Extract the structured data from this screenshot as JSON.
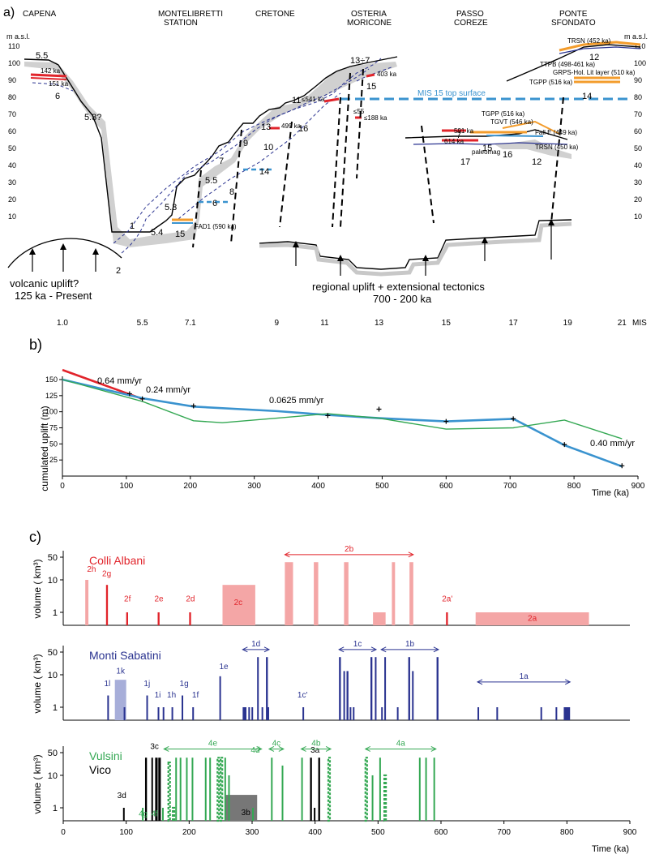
{
  "panel_a": {
    "tag": "a)",
    "localities": [
      "CAPENA",
      "MONTELIBRETTI",
      "STATION",
      "CRETONE",
      "OSTERIA",
      "MORICONE",
      "PASSO",
      "COREZE",
      "PONTE",
      "SFONDATO"
    ],
    "unit": "m a.s.l.",
    "y_ticks": [
      "110",
      "100",
      "90",
      "80",
      "70",
      "60",
      "50",
      "40",
      "30",
      "20",
      "10"
    ],
    "labels": {
      "t55a": "5.5",
      "t6a": "6",
      "t53q": "5.3?",
      "t1": "1",
      "t53": "5.3",
      "t54": "5.4",
      "t2": "2",
      "t55b": "5.5",
      "t6b": "6",
      "t7": "7",
      "t8": "8",
      "t9": "9",
      "t10": "10",
      "t11": "11",
      "t13": "13",
      "t14a": "14",
      "t15a": "15",
      "t16a": "16",
      "t13to7": "13÷7",
      "t15b": "15",
      "t14b": "14",
      "t12": "12",
      "t7b": "7",
      "t15c": "15",
      "t16b": "16",
      "t17": "17",
      "t12b": "12",
      "a142": "142 ka",
      "a151": "151 ka",
      "fad1": "FAD1 (590 ka)",
      "a499": "499 ka",
      "a541": "≤541 ka",
      "a403": "403 ka",
      "a55": "≤55",
      "a188": "≤188 ka",
      "trsn452": "TRSN (452 ka)",
      "ttpb": "TTPB (498-461 ka)",
      "grps": "GRPS-Hol. Lit layer (510 ka)",
      "tgpp516a": "TGPP (516 ka)",
      "mis15": "MIS 15 top surface",
      "tgpp516b": "TGPP (516 ka)",
      "tgvt": "TGVT (546 ka)",
      "a591": "591 ka",
      "falle": "Fall E (449 ka)",
      "a614": "614 ka",
      "trsn450": "TRSN (450 ka)",
      "paleomag": "paleomag"
    },
    "volcanic_caption": [
      "volcanic uplift?",
      "125 ka - Present"
    ],
    "regional_caption": [
      "regional uplift + extensional tectonics",
      "700 - 200 ka"
    ]
  },
  "panel_b": {
    "tag": "b)",
    "mis_label": "MIS",
    "mis_ticks": [
      "1.0",
      "5.5",
      "7.1",
      "9",
      "11",
      "13",
      "15",
      "17",
      "19",
      "21"
    ],
    "rates": [
      "0.64 mm/yr",
      "0.24 mm/yr",
      "0.0625 mm/yr",
      "0.40 mm/yr"
    ],
    "chart_data": {
      "type": "line",
      "xlabel": "Time (ka)",
      "ylabel": "cumulated uplift (m)",
      "xlim": [
        0,
        900
      ],
      "ylim": [
        0,
        150
      ],
      "x_ticks": [
        0,
        100,
        200,
        300,
        400,
        500,
        600,
        700,
        800,
        900
      ],
      "y_ticks": [
        25,
        50,
        75,
        100,
        125,
        150
      ],
      "series": [
        {
          "color": "#e1242b",
          "x": [
            0,
            125
          ],
          "y": [
            165,
            120
          ]
        },
        {
          "color": "#3a93cf",
          "x": [
            0,
            125,
            205,
            335,
            415,
            495,
            600,
            705,
            785,
            875
          ],
          "y": [
            150,
            121,
            108,
            101,
            95,
            90,
            85,
            89,
            48,
            15
          ]
        },
        {
          "color": "#34a853",
          "x": [
            0,
            125,
            205,
            250,
            335,
            415,
            495,
            600,
            705,
            785,
            875
          ],
          "y": [
            150,
            116,
            86,
            83,
            90,
            97,
            90,
            73,
            75,
            87,
            58
          ]
        }
      ],
      "markers": {
        "x": [
          105,
          125,
          205,
          415,
          495,
          600,
          705,
          785,
          875
        ],
        "y": [
          128,
          120,
          109,
          94,
          104,
          85,
          89,
          49,
          16
        ]
      }
    }
  },
  "panel_c": {
    "tag": "c)",
    "xlabel": "Time (ka)",
    "x_ticks": [
      0,
      100,
      200,
      300,
      400,
      500,
      600,
      700,
      800,
      900
    ],
    "ylabel": "volume ( km³)",
    "y_ticks": [
      "50",
      "10",
      "1"
    ],
    "rows": [
      {
        "title": "Colli Albani",
        "color": "#e1242b",
        "bars": [
          {
            "x0": 35,
            "x1": 40,
            "v": 10,
            "c": "#f4a6a6"
          },
          {
            "x0": 68,
            "x1": 71,
            "v": 7,
            "c": "#e1242b"
          },
          {
            "x0": 100,
            "x1": 103,
            "v": 1,
            "c": "#e1242b"
          },
          {
            "x0": 150,
            "x1": 153,
            "v": 1,
            "c": "#e1242b"
          },
          {
            "x0": 200,
            "x1": 203,
            "v": 1,
            "c": "#e1242b"
          },
          {
            "x0": 253,
            "x1": 305,
            "v": 7,
            "c": "#f4a6a6"
          },
          {
            "x0": 352,
            "x1": 365,
            "v": 35,
            "c": "#f4a6a6"
          },
          {
            "x0": 398,
            "x1": 405,
            "v": 35,
            "c": "#f4a6a6"
          },
          {
            "x0": 446,
            "x1": 453,
            "v": 35,
            "c": "#f4a6a6"
          },
          {
            "x0": 492,
            "x1": 512,
            "v": 1,
            "c": "#f4a6a6"
          },
          {
            "x0": 522,
            "x1": 527,
            "v": 35,
            "c": "#f4a6a6"
          },
          {
            "x0": 550,
            "x1": 556,
            "v": 35,
            "c": "#f4a6a6"
          },
          {
            "x0": 608,
            "x1": 611,
            "v": 1,
            "c": "#e1242b"
          },
          {
            "x0": 655,
            "x1": 835,
            "v": 1,
            "c": "#f4a6a6"
          }
        ],
        "labels": [
          {
            "t": "2h",
            "x": 45,
            "v": 18
          },
          {
            "t": "2g",
            "x": 69,
            "v": 13
          },
          {
            "t": "2f",
            "x": 102,
            "v": 2.2
          },
          {
            "t": "2e",
            "x": 152,
            "v": 2.2
          },
          {
            "t": "2d",
            "x": 202,
            "v": 2.2
          },
          {
            "t": "2c",
            "x": 278,
            "v": 1.7
          },
          {
            "t": "2a'",
            "x": 610,
            "v": 2.2
          },
          {
            "t": "2a",
            "x": 745,
            "v": 0.55
          }
        ],
        "spans": [
          {
            "t": "2b",
            "x0": 352,
            "x1": 556,
            "v": 60
          }
        ]
      },
      {
        "title": "Monti Sabatini",
        "color": "#2a3390",
        "bars": [
          {
            "x0": 70,
            "x1": 72,
            "v": 2.3,
            "c": "#2a3390"
          },
          {
            "x0": 82,
            "x1": 100,
            "v": 7,
            "c": "#a7aed9"
          },
          {
            "x0": 96,
            "x1": 98,
            "v": 1,
            "c": "#2a3390"
          },
          {
            "x0": 132,
            "x1": 134,
            "v": 2.3,
            "c": "#2a3390"
          },
          {
            "x0": 150,
            "x1": 152,
            "v": 1,
            "c": "#2a3390"
          },
          {
            "x0": 158,
            "x1": 160,
            "v": 1,
            "c": "#2a3390"
          },
          {
            "x0": 172,
            "x1": 174,
            "v": 1,
            "c": "#2a3390"
          },
          {
            "x0": 188,
            "x1": 190,
            "v": 2.3,
            "c": "#2a3390"
          },
          {
            "x0": 205,
            "x1": 207,
            "v": 1,
            "c": "#2a3390"
          },
          {
            "x0": 248,
            "x1": 250,
            "v": 9,
            "c": "#2a3390"
          },
          {
            "x0": 285,
            "x1": 291,
            "v": 1,
            "c": "#2a3390"
          },
          {
            "x0": 294,
            "x1": 296,
            "v": 1,
            "c": "#2a3390"
          },
          {
            "x0": 299,
            "x1": 301,
            "v": 1,
            "c": "#2a3390"
          },
          {
            "x0": 308,
            "x1": 310,
            "v": 35,
            "c": "#2a3390"
          },
          {
            "x0": 315,
            "x1": 317,
            "v": 1,
            "c": "#2a3390"
          },
          {
            "x0": 322,
            "x1": 325,
            "v": 35,
            "c": "#2a3390"
          },
          {
            "x0": 323,
            "x1": 327,
            "v": 1,
            "c": "#2a3390"
          },
          {
            "x0": 380,
            "x1": 382,
            "v": 1,
            "c": "#2a3390"
          },
          {
            "x0": 438,
            "x1": 441,
            "v": 35,
            "c": "#2a3390"
          },
          {
            "x0": 445,
            "x1": 447,
            "v": 13,
            "c": "#2a3390"
          },
          {
            "x0": 450,
            "x1": 453,
            "v": 13,
            "c": "#2a3390"
          },
          {
            "x0": 455,
            "x1": 457,
            "v": 1,
            "c": "#2a3390"
          },
          {
            "x0": 460,
            "x1": 462,
            "v": 1,
            "c": "#2a3390"
          },
          {
            "x0": 488,
            "x1": 491,
            "v": 35,
            "c": "#2a3390"
          },
          {
            "x0": 495,
            "x1": 497,
            "v": 35,
            "c": "#2a3390"
          },
          {
            "x0": 505,
            "x1": 507,
            "v": 1,
            "c": "#2a3390"
          },
          {
            "x0": 510,
            "x1": 512,
            "v": 35,
            "c": "#2a3390"
          },
          {
            "x0": 530,
            "x1": 532,
            "v": 1,
            "c": "#2a3390"
          },
          {
            "x0": 548,
            "x1": 551,
            "v": 35,
            "c": "#2a3390"
          },
          {
            "x0": 554,
            "x1": 556,
            "v": 13,
            "c": "#2a3390"
          },
          {
            "x0": 593,
            "x1": 596,
            "v": 35,
            "c": "#2a3390"
          },
          {
            "x0": 658,
            "x1": 660,
            "v": 1,
            "c": "#2a3390"
          },
          {
            "x0": 688,
            "x1": 690,
            "v": 1,
            "c": "#2a3390"
          },
          {
            "x0": 758,
            "x1": 760,
            "v": 1,
            "c": "#2a3390"
          },
          {
            "x0": 782,
            "x1": 784,
            "v": 1,
            "c": "#2a3390"
          },
          {
            "x0": 795,
            "x1": 805,
            "v": 1,
            "c": "#2a3390"
          }
        ],
        "labels": [
          {
            "t": "1l",
            "x": 70,
            "v": 4.5
          },
          {
            "t": "1k",
            "x": 91,
            "v": 11
          },
          {
            "t": "1j",
            "x": 133,
            "v": 4.5
          },
          {
            "t": "1i",
            "x": 150,
            "v": 2
          },
          {
            "t": "1h",
            "x": 172,
            "v": 2
          },
          {
            "t": "1g",
            "x": 192,
            "v": 4.5
          },
          {
            "t": "1f",
            "x": 210,
            "v": 2
          },
          {
            "t": "1e",
            "x": 255,
            "v": 15
          },
          {
            "t": "1c'",
            "x": 380,
            "v": 2
          }
        ],
        "spans": [
          {
            "t": "1d",
            "x0": 285,
            "x1": 327,
            "v": 60
          },
          {
            "t": "1c",
            "x0": 438,
            "x1": 497,
            "v": 60
          },
          {
            "t": "1b",
            "x0": 505,
            "x1": 596,
            "v": 60
          },
          {
            "t": "1a",
            "x0": 658,
            "x1": 805,
            "v": 6
          }
        ]
      },
      {
        "title": "Vulsini",
        "title2": "Vico",
        "color": "#34a853",
        "bars": [
          {
            "x0": 95,
            "x1": 97,
            "v": 1,
            "c": "#000000"
          },
          {
            "x0": 130,
            "x1": 133,
            "v": 35,
            "c": "#000000"
          },
          {
            "x0": 140,
            "x1": 142,
            "v": 35,
            "c": "#000000"
          },
          {
            "x0": 146,
            "x1": 150,
            "v": 35,
            "c": "#000000"
          },
          {
            "x0": 151,
            "x1": 155,
            "v": 35,
            "c": "#000000"
          },
          {
            "x0": 258,
            "x1": 308,
            "v": 2.5,
            "c": "#777777"
          },
          {
            "x0": 392,
            "x1": 395,
            "v": 35,
            "c": "#000000"
          },
          {
            "x0": 398,
            "x1": 400,
            "v": 1,
            "c": "#000000"
          },
          {
            "x0": 405,
            "x1": 408,
            "v": 35,
            "c": "#000000"
          },
          {
            "x0": 125,
            "x1": 127,
            "v": 1,
            "c": "#34a853"
          },
          {
            "x0": 157,
            "x1": 159,
            "v": 1,
            "c": "#34a853"
          },
          {
            "x0": 167,
            "x1": 169,
            "v": 25,
            "c": "#34a853",
            "d": true
          },
          {
            "x0": 174,
            "x1": 176,
            "v": 1,
            "c": "#34a853",
            "d": true
          },
          {
            "x0": 178,
            "x1": 180,
            "v": 35,
            "c": "#34a853"
          },
          {
            "x0": 185,
            "x1": 187,
            "v": 35,
            "c": "#34a853"
          },
          {
            "x0": 195,
            "x1": 197,
            "v": 35,
            "c": "#34a853"
          },
          {
            "x0": 204,
            "x1": 206,
            "v": 35,
            "c": "#34a853"
          },
          {
            "x0": 225,
            "x1": 227,
            "v": 35,
            "c": "#34a853"
          },
          {
            "x0": 232,
            "x1": 234,
            "v": 35,
            "c": "#34a853"
          },
          {
            "x0": 245,
            "x1": 247,
            "v": 35,
            "c": "#34a853",
            "d": true
          },
          {
            "x0": 250,
            "x1": 252,
            "v": 35,
            "c": "#34a853",
            "d": true
          },
          {
            "x0": 256,
            "x1": 258,
            "v": 35,
            "c": "#34a853"
          },
          {
            "x0": 262,
            "x1": 264,
            "v": 10,
            "c": "#34a853"
          },
          {
            "x0": 300,
            "x1": 302,
            "v": 1,
            "c": "#34a853"
          },
          {
            "x0": 330,
            "x1": 332,
            "v": 35,
            "c": "#34a853"
          },
          {
            "x0": 347,
            "x1": 349,
            "v": 20,
            "c": "#34a853"
          },
          {
            "x0": 378,
            "x1": 380,
            "v": 35,
            "c": "#34a853"
          },
          {
            "x0": 421,
            "x1": 423,
            "v": 35,
            "c": "#34a853",
            "d": true
          },
          {
            "x0": 480,
            "x1": 482,
            "v": 35,
            "c": "#34a853",
            "d": true
          },
          {
            "x0": 490,
            "x1": 492,
            "v": 10,
            "c": "#34a853"
          },
          {
            "x0": 502,
            "x1": 504,
            "v": 35,
            "c": "#34a853"
          },
          {
            "x0": 510,
            "x1": 512,
            "v": 10,
            "c": "#34a853",
            "d": true
          },
          {
            "x0": 565,
            "x1": 567,
            "v": 35,
            "c": "#34a853"
          },
          {
            "x0": 575,
            "x1": 577,
            "v": 35,
            "c": "#34a853"
          },
          {
            "x0": 588,
            "x1": 590,
            "v": 35,
            "c": "#34a853"
          }
        ],
        "labels": [
          {
            "t": "3d",
            "x": 93,
            "v": 2
          },
          {
            "t": "4g",
            "x": 127,
            "v": 0.55
          },
          {
            "t": "4f",
            "x": 145,
            "v": 0.55
          },
          {
            "t": "3c",
            "x": 145,
            "v": 65
          },
          {
            "t": "4d",
            "x": 305,
            "v": 50
          },
          {
            "t": "3b",
            "x": 290,
            "v": 0.6
          },
          {
            "t": "3a",
            "x": 400,
            "v": 50
          }
        ],
        "spans": [
          {
            "t": "4e",
            "x0": 160,
            "x1": 315,
            "v": 65,
            "c": "#34a853"
          },
          {
            "t": "4c",
            "x0": 327,
            "x1": 350,
            "v": 65,
            "c": "#34a853"
          },
          {
            "t": "4b",
            "x0": 378,
            "x1": 425,
            "v": 65,
            "c": "#34a853"
          },
          {
            "t": "4a",
            "x0": 480,
            "x1": 592,
            "v": 65,
            "c": "#34a853"
          }
        ]
      }
    ]
  }
}
